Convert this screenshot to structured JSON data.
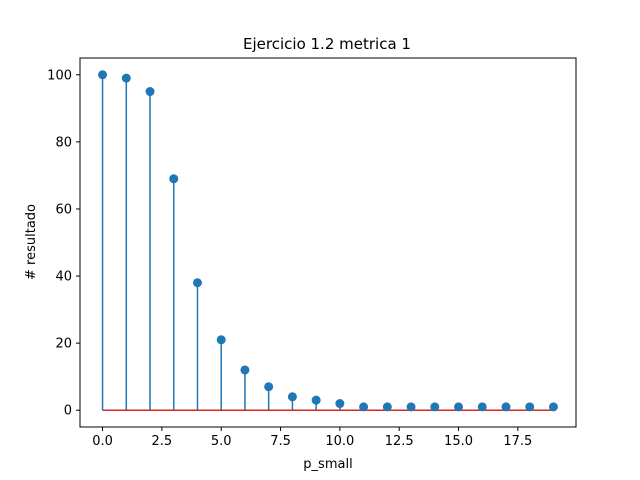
{
  "chart_data": {
    "type": "stem",
    "title": "Ejercicio 1.2 metrica 1",
    "xlabel": "p_small",
    "ylabel": "# resultado",
    "x": [
      0,
      1,
      2,
      3,
      4,
      5,
      6,
      7,
      8,
      9,
      10,
      11,
      12,
      13,
      14,
      15,
      16,
      17,
      18,
      19
    ],
    "values": [
      100,
      99,
      95,
      69,
      38,
      21,
      12,
      7,
      4,
      3,
      2,
      1,
      1,
      1,
      1,
      1,
      1,
      1,
      1,
      1
    ],
    "xlim": [
      -0.95,
      19.95
    ],
    "ylim": [
      -5,
      105
    ],
    "xticks": [
      0.0,
      2.5,
      5.0,
      7.5,
      10.0,
      12.5,
      15.0,
      17.5
    ],
    "xtick_labels": [
      "0.0",
      "2.5",
      "5.0",
      "7.5",
      "10.0",
      "12.5",
      "15.0",
      "17.5"
    ],
    "yticks": [
      0,
      20,
      40,
      60,
      80,
      100
    ],
    "ytick_labels": [
      "0",
      "20",
      "40",
      "60",
      "80",
      "100"
    ],
    "baseline": 0,
    "grid": false,
    "colors": {
      "marker": "#1f77b4",
      "stem": "#1f77b4",
      "baseline": "#d62728",
      "axes": "#000000"
    }
  }
}
